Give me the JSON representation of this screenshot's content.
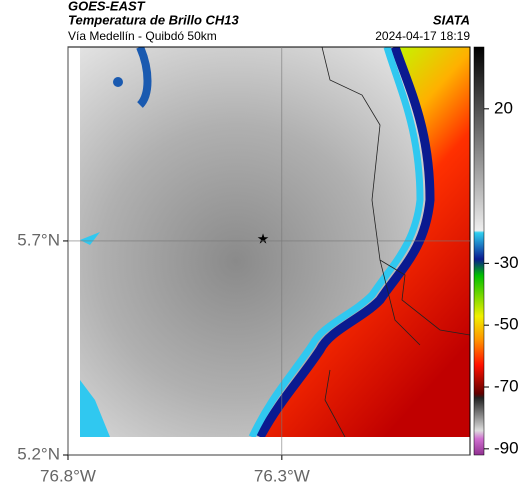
{
  "header": {
    "source": "GOES-EAST",
    "product": "Temperatura de Brillo CH13",
    "agency": "SIATA",
    "region": "Vía Medellín - Quibdó 50km",
    "datetime": "2024-04-17 18:19"
  },
  "map": {
    "lonlim": [
      -76.8,
      -75.86
    ],
    "latlim": [
      5.2,
      6.153
    ],
    "lonticks": [
      {
        "value": -76.8,
        "label": "76.8°W"
      },
      {
        "value": -76.3,
        "label": "76.3°W"
      }
    ],
    "latticks": [
      {
        "value": 5.7,
        "label": "5.7°N"
      },
      {
        "value": 5.2,
        "label": "5.2°N"
      }
    ],
    "grid": true
  },
  "colorbar": {
    "lim": [
      -92,
      40
    ],
    "ticks": [
      20,
      -30,
      -50,
      -70,
      -90
    ]
  }
}
